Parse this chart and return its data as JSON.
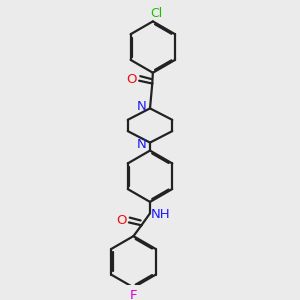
{
  "bg_color": "#ebebeb",
  "bond_color": "#222222",
  "bond_width": 1.6,
  "dbo": 0.055,
  "colors": {
    "N": "#1a1aff",
    "O": "#ee1111",
    "Cl": "#22bb00",
    "F": "#dd00dd",
    "C": "#222222"
  },
  "figsize": [
    3.0,
    3.0
  ],
  "dpi": 100,
  "xlim": [
    0,
    10
  ],
  "ylim": [
    0,
    10
  ]
}
